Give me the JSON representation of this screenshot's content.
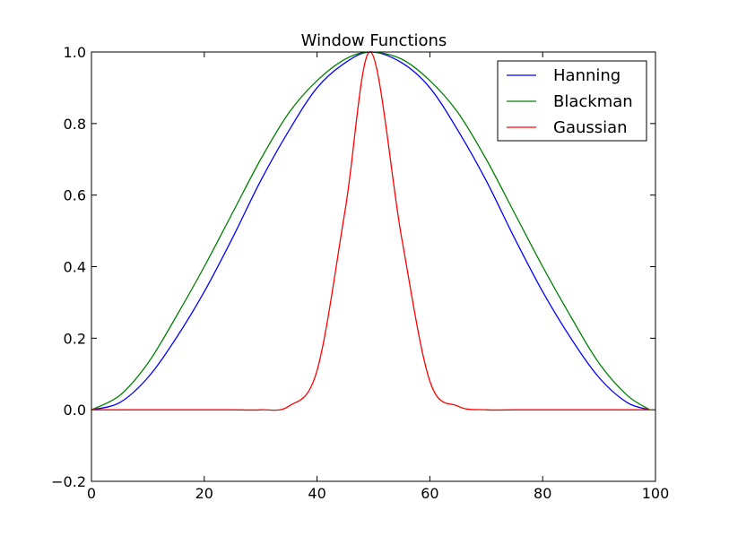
{
  "chart_data": {
    "type": "line",
    "title": "Window Functions",
    "xlabel": "",
    "ylabel": "",
    "xlim": [
      0,
      100
    ],
    "ylim": [
      -0.2,
      1.0
    ],
    "x_ticks": [
      "0",
      "20",
      "40",
      "60",
      "80",
      "100"
    ],
    "y_ticks": [
      "−0.2",
      "0.0",
      "0.2",
      "0.4",
      "0.6",
      "0.8",
      "1.0"
    ],
    "x_tick_values": [
      0,
      20,
      40,
      60,
      80,
      100
    ],
    "y_tick_values": [
      -0.2,
      0.0,
      0.2,
      0.4,
      0.6,
      0.8,
      1.0
    ],
    "grid": false,
    "legend_position": "top-right",
    "x": [
      0,
      5,
      10,
      15,
      20,
      25,
      30,
      35,
      40,
      45,
      49.5,
      55,
      60,
      65,
      70,
      75,
      80,
      85,
      90,
      95,
      99
    ],
    "series": [
      {
        "name": "Hanning",
        "color": "#0000ff",
        "values": [
          0.0,
          0.02,
          0.09,
          0.2,
          0.33,
          0.48,
          0.64,
          0.78,
          0.9,
          0.97,
          1.0,
          0.97,
          0.9,
          0.78,
          0.64,
          0.48,
          0.33,
          0.2,
          0.09,
          0.02,
          0.0
        ]
      },
      {
        "name": "Blackman",
        "color": "#008000",
        "values": [
          0.0,
          0.04,
          0.13,
          0.26,
          0.4,
          0.55,
          0.7,
          0.83,
          0.92,
          0.98,
          1.0,
          0.98,
          0.92,
          0.83,
          0.7,
          0.55,
          0.4,
          0.26,
          0.13,
          0.04,
          0.0
        ]
      },
      {
        "name": "Gaussian",
        "color": "#ff0000",
        "values": [
          0.0,
          0.0,
          0.0,
          0.0,
          0.0,
          0.0,
          0.0,
          0.01,
          0.11,
          0.56,
          1.0,
          0.48,
          0.08,
          0.01,
          0.0,
          0.0,
          0.0,
          0.0,
          0.0,
          0.0,
          0.0
        ]
      }
    ]
  }
}
